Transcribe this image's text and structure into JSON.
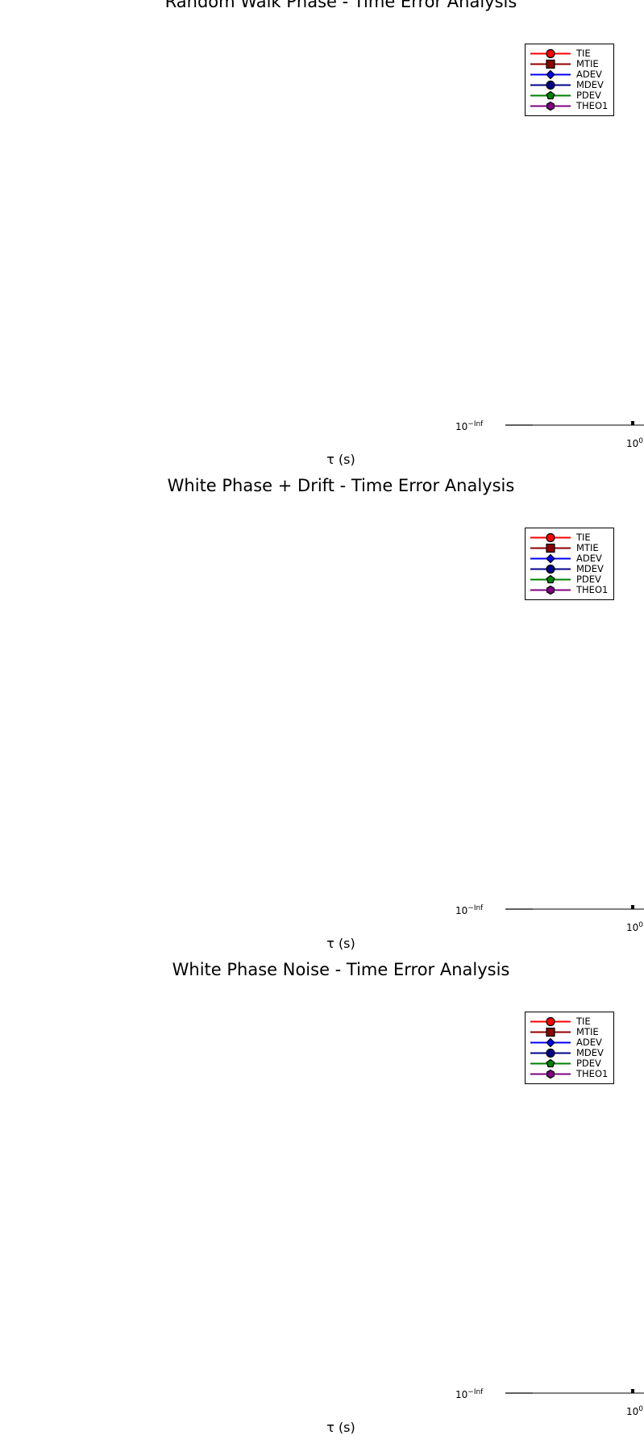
{
  "chart_data": [
    {
      "type": "line",
      "title": "Random Walk Phase - Time Error Analysis",
      "xlabel": "τ (s)",
      "ylabel": "",
      "xscale": "log",
      "yscale": "log",
      "x_tick_labels": [
        "10^0"
      ],
      "y_tick_labels": [
        "10^−Inf"
      ],
      "legend_position": "top-right",
      "series": [
        {
          "name": "TIE",
          "color": "#ff0000",
          "marker": "circle",
          "values": []
        },
        {
          "name": "MTIE",
          "color": "#8b0000",
          "marker": "square",
          "values": []
        },
        {
          "name": "ADEV",
          "color": "#0000ff",
          "marker": "diamond",
          "values": []
        },
        {
          "name": "MDEV",
          "color": "#00008b",
          "marker": "circle",
          "values": []
        },
        {
          "name": "PDEV",
          "color": "#008000",
          "marker": "pentagon",
          "values": []
        },
        {
          "name": "THEO1",
          "color": "#800080",
          "marker": "hexagon",
          "values": []
        }
      ]
    },
    {
      "type": "line",
      "title": "White Phase + Drift - Time Error Analysis",
      "xlabel": "τ (s)",
      "ylabel": "",
      "xscale": "log",
      "yscale": "log",
      "x_tick_labels": [
        "10^0"
      ],
      "y_tick_labels": [
        "10^−Inf"
      ],
      "legend_position": "top-right",
      "series": [
        {
          "name": "TIE",
          "color": "#ff0000",
          "marker": "circle",
          "values": []
        },
        {
          "name": "MTIE",
          "color": "#8b0000",
          "marker": "square",
          "values": []
        },
        {
          "name": "ADEV",
          "color": "#0000ff",
          "marker": "diamond",
          "values": []
        },
        {
          "name": "MDEV",
          "color": "#00008b",
          "marker": "circle",
          "values": []
        },
        {
          "name": "PDEV",
          "color": "#008000",
          "marker": "pentagon",
          "values": []
        },
        {
          "name": "THEO1",
          "color": "#800080",
          "marker": "hexagon",
          "values": []
        }
      ]
    },
    {
      "type": "line",
      "title": "White Phase Noise - Time Error Analysis",
      "xlabel": "τ (s)",
      "ylabel": "",
      "xscale": "log",
      "yscale": "log",
      "x_tick_labels": [
        "10^0"
      ],
      "y_tick_labels": [
        "10^−Inf"
      ],
      "legend_position": "top-right",
      "series": [
        {
          "name": "TIE",
          "color": "#ff0000",
          "marker": "circle",
          "values": []
        },
        {
          "name": "MTIE",
          "color": "#8b0000",
          "marker": "square",
          "values": []
        },
        {
          "name": "ADEV",
          "color": "#0000ff",
          "marker": "diamond",
          "values": []
        },
        {
          "name": "MDEV",
          "color": "#00008b",
          "marker": "circle",
          "values": []
        },
        {
          "name": "PDEV",
          "color": "#008000",
          "marker": "pentagon",
          "values": []
        },
        {
          "name": "THEO1",
          "color": "#800080",
          "marker": "hexagon",
          "values": []
        }
      ]
    }
  ]
}
